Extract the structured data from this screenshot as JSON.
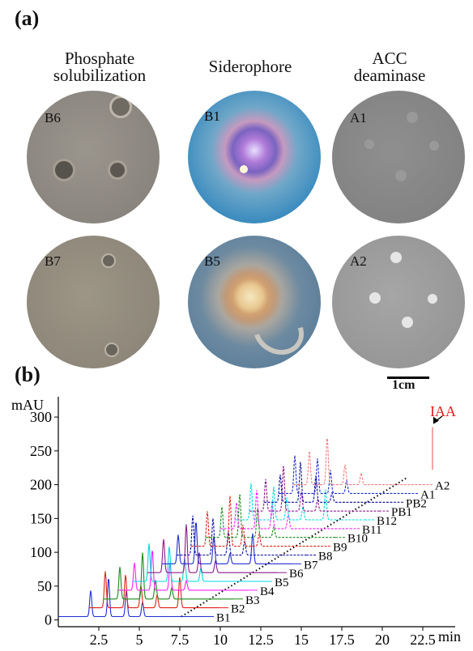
{
  "panel_a": {
    "label": "(a)",
    "columns": [
      {
        "title_line1": "Phosphate",
        "title_line2": "solubilization",
        "plates": [
          "B6",
          "B7"
        ]
      },
      {
        "title_line1": "Siderophore",
        "title_line2": "",
        "plates": [
          "B1",
          "B5"
        ]
      },
      {
        "title_line1": "ACC",
        "title_line2": "deaminase",
        "plates": [
          "A1",
          "A2"
        ]
      }
    ],
    "scale_bar": "1cm"
  },
  "panel_b": {
    "label": "(b)"
  },
  "chart_data": {
    "type": "line",
    "ylabel": "mAU",
    "xlabel": "min",
    "xlim": [
      0,
      24.5
    ],
    "ylim": [
      -10,
      330
    ],
    "x_ticks": [
      "2.5",
      "5",
      "7.5",
      "10",
      "12.5",
      "15",
      "17.5",
      "20",
      "22.5"
    ],
    "y_ticks": [
      "0",
      "50",
      "100",
      "150",
      "200",
      "250",
      "300"
    ],
    "annotation": "IAA",
    "peak": {
      "x": 23.1,
      "y": 285
    },
    "series": [
      {
        "name": "B1",
        "color": "#1f2fd0",
        "offset_x": 0.0,
        "offset_y": 5
      },
      {
        "name": "B2",
        "color": "#e0201a",
        "offset_x": 0.9,
        "offset_y": 18
      },
      {
        "name": "B3",
        "color": "#1a8a1a",
        "offset_x": 1.8,
        "offset_y": 31
      },
      {
        "name": "B4",
        "color": "#ff22ff",
        "offset_x": 2.7,
        "offset_y": 44
      },
      {
        "name": "B5",
        "color": "#00d8e0",
        "offset_x": 3.6,
        "offset_y": 57
      },
      {
        "name": "B6",
        "color": "#8a1a8a",
        "offset_x": 4.5,
        "offset_y": 70
      },
      {
        "name": "B7",
        "color": "#1f2fd0",
        "offset_x": 5.4,
        "offset_y": 83
      },
      {
        "name": "B8",
        "color": "#0a0a9a",
        "offset_x": 6.3,
        "offset_y": 96
      },
      {
        "name": "B9",
        "color": "#e0201a",
        "offset_x": 7.2,
        "offset_y": 109
      },
      {
        "name": "B10",
        "color": "#1a8a1a",
        "offset_x": 8.1,
        "offset_y": 122
      },
      {
        "name": "B11",
        "color": "#ff22ff",
        "offset_x": 9.0,
        "offset_y": 135
      },
      {
        "name": "B12",
        "color": "#00d8e0",
        "offset_x": 9.9,
        "offset_y": 148
      },
      {
        "name": "PB1",
        "color": "#8a1a8a",
        "offset_x": 10.8,
        "offset_y": 161
      },
      {
        "name": "PB2",
        "color": "#0a0a9a",
        "offset_x": 11.7,
        "offset_y": 174
      },
      {
        "name": "A1",
        "color": "#1f2fd0",
        "offset_x": 12.6,
        "offset_y": 187
      },
      {
        "name": "A2",
        "color": "#f08080",
        "offset_x": 13.5,
        "offset_y": 200
      }
    ]
  }
}
